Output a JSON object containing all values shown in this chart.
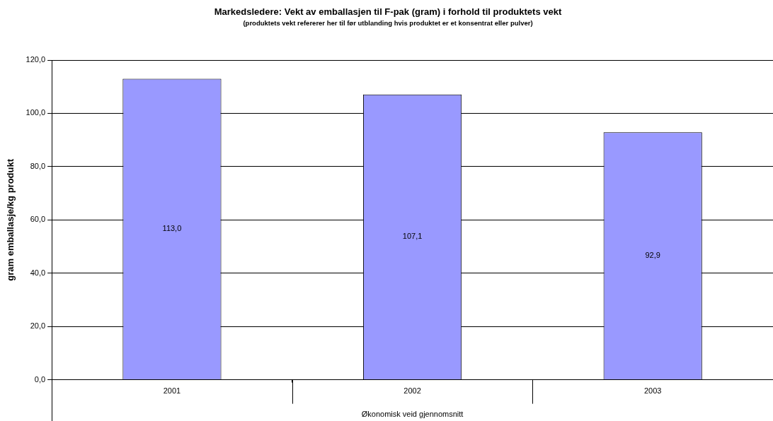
{
  "chart_data": {
    "type": "bar",
    "title": "Markedsledere: Vekt av emballasjen til F-pak (gram) i forhold til produktets vekt",
    "subtitle": "(produktets vekt refererer her til før utblanding hvis produktet er et konsentrat eller pulver)",
    "xlabel": "Økonomisk veid gjennomsnitt",
    "ylabel": "gram emballasje/kg produkt",
    "categories": [
      "2001",
      "2002",
      "2003"
    ],
    "values": [
      113.0,
      107.1,
      92.9
    ],
    "value_labels": [
      "113,0",
      "107,1",
      "92,9"
    ],
    "color": "#9999ff",
    "ylim": [
      0,
      120
    ],
    "yticks": [
      {
        "value": 0,
        "label": "0,0"
      },
      {
        "value": 20,
        "label": "20,0"
      },
      {
        "value": 40,
        "label": "40,0"
      },
      {
        "value": 60,
        "label": "60,0"
      },
      {
        "value": 80,
        "label": "80,0"
      },
      {
        "value": 100,
        "label": "100,0"
      },
      {
        "value": 120,
        "label": "120,0"
      }
    ],
    "grid": "y",
    "legend": false
  }
}
